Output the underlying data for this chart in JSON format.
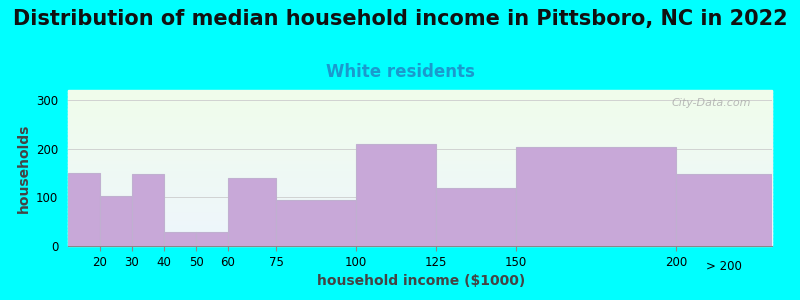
{
  "title": "Distribution of median household income in Pittsboro, NC in 2022",
  "subtitle": "White residents",
  "xlabel": "household income ($1000)",
  "ylabel": "households",
  "background_color": "#00FFFF",
  "bar_color": "#c8a8d8",
  "bar_edge_color": "#c0b0d0",
  "watermark": "City-Data.com",
  "bin_edges": [
    10,
    20,
    30,
    40,
    50,
    60,
    75,
    100,
    125,
    150,
    200,
    230
  ],
  "bin_labels": [
    "20",
    "30",
    "40",
    "50",
    "60",
    "75",
    "100",
    "125",
    "150",
    "200",
    "> 200"
  ],
  "values": [
    150,
    103,
    148,
    28,
    28,
    140,
    95,
    210,
    118,
    203,
    148
  ],
  "tick_positions": [
    20,
    30,
    40,
    50,
    60,
    75,
    100,
    125,
    150,
    200
  ],
  "ylim": [
    0,
    320
  ],
  "yticks": [
    0,
    100,
    200,
    300
  ],
  "title_fontsize": 15,
  "subtitle_fontsize": 12,
  "subtitle_color": "#1a9acd",
  "axis_label_fontsize": 10
}
